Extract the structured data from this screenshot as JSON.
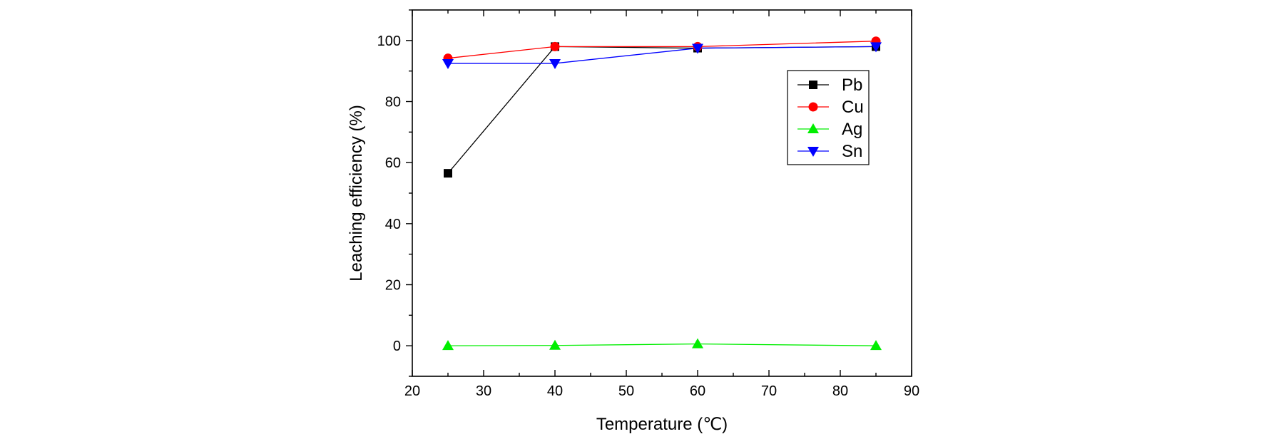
{
  "chart_data": {
    "type": "line",
    "xlabel": "Temperature (℃)",
    "ylabel": "Leaching efficiency (%)",
    "xlim": [
      20,
      90
    ],
    "ylim": [
      -10,
      110
    ],
    "x_ticks": [
      20,
      30,
      40,
      50,
      60,
      70,
      80,
      90
    ],
    "y_ticks": [
      0,
      20,
      40,
      60,
      80,
      100
    ],
    "grid": false,
    "legend_position": "top-right",
    "x": [
      25,
      40,
      60,
      85
    ],
    "series": [
      {
        "name": "Pb",
        "values": [
          56.5,
          98.0,
          97.5,
          98.0
        ],
        "color": "#000000",
        "marker": "square"
      },
      {
        "name": "Cu",
        "values": [
          94.2,
          98.0,
          98.0,
          99.8
        ],
        "color": "#ff0000",
        "marker": "circle"
      },
      {
        "name": "Ag",
        "values": [
          0.0,
          0.1,
          0.6,
          0.0
        ],
        "color": "#00ee00",
        "marker": "triangle-up"
      },
      {
        "name": "Sn",
        "values": [
          92.5,
          92.5,
          97.5,
          98.0
        ],
        "color": "#0000ff",
        "marker": "triangle-down"
      }
    ]
  }
}
